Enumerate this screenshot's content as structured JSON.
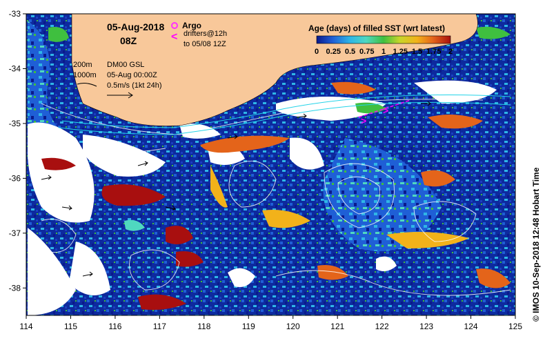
{
  "title": {
    "date": "05-Aug-2018",
    "time": "08Z"
  },
  "legend_argo": {
    "label": "Argo",
    "color": "#ff33ff"
  },
  "legend_drifters": {
    "label": "drifters@12h",
    "sublabel": "to 05/08 12Z",
    "color": "#ff00ff"
  },
  "isobaths": {
    "a": "200m",
    "b": "1000m"
  },
  "product": {
    "name": "DM00 GSL",
    "valid": "05-Aug 00:00Z",
    "scale": "0.5m/s (1kt 24h)"
  },
  "colorbar": {
    "title": "Age (days) of filled SST (wrt latest)",
    "ticks": [
      "0",
      "0.25",
      "0.5",
      "0.75",
      "1",
      "1.25",
      "1.5",
      "1.75",
      "2"
    ],
    "colors": [
      "#0a1a8c",
      "#1f5fd6",
      "#2fb6e6",
      "#4fd8c0",
      "#3fbf3f",
      "#c7d62a",
      "#f2b21a",
      "#e4641a",
      "#a80f0f"
    ]
  },
  "credit": "© IMOS 10-Sep-2018 12:48 Hobart Time",
  "colors": {
    "land": "#f8c89a",
    "ocean_deep": "#0a1a8c",
    "cloud_gap": "#ffffff"
  },
  "axes": {
    "x_ticks": [
      "114",
      "115",
      "116",
      "117",
      "118",
      "119",
      "120",
      "121",
      "122",
      "123",
      "124",
      "125"
    ],
    "y_ticks": [
      "-33",
      "-34",
      "-35",
      "-36",
      "-37",
      "-38"
    ],
    "x_range": [
      114,
      125
    ],
    "y_range": [
      -38.5,
      -33
    ]
  }
}
